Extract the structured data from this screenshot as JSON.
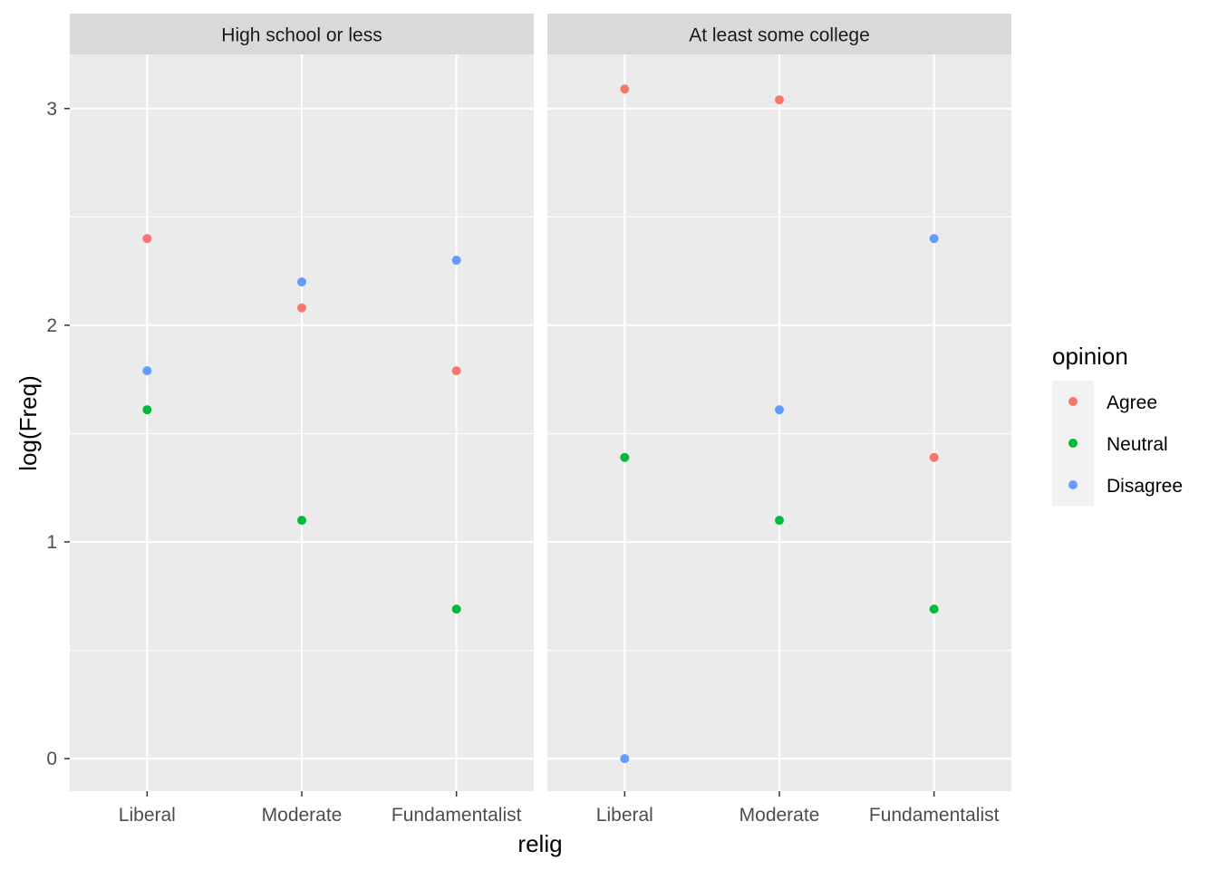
{
  "chart_data": {
    "type": "scatter",
    "xlabel": "relig",
    "ylabel": "log(Freq)",
    "categories": [
      "Liberal",
      "Moderate",
      "Fundamentalist"
    ],
    "yticks": [
      "0",
      "1",
      "2",
      "3"
    ],
    "ylim": [
      -0.15,
      3.25
    ],
    "grid": true,
    "facets": [
      {
        "title": "High school or less"
      },
      {
        "title": "At least some college"
      }
    ],
    "legend": {
      "title": "opinion",
      "placement": "right",
      "entries": [
        {
          "name": "Agree",
          "color": "#F8766D"
        },
        {
          "name": "Neutral",
          "color": "#00BA38"
        },
        {
          "name": "Disagree",
          "color": "#619CFF"
        }
      ]
    },
    "series": [
      {
        "name": "Agree",
        "color": "#F8766D",
        "facet_values": [
          [
            2.4,
            2.08,
            1.79
          ],
          [
            3.09,
            3.04,
            1.39
          ]
        ]
      },
      {
        "name": "Neutral",
        "color": "#00BA38",
        "facet_values": [
          [
            1.61,
            1.1,
            0.69
          ],
          [
            1.39,
            1.1,
            0.69
          ]
        ]
      },
      {
        "name": "Disagree",
        "color": "#619CFF",
        "facet_values": [
          [
            1.79,
            2.2,
            2.3
          ],
          [
            0.0,
            1.61,
            2.4
          ]
        ]
      }
    ]
  }
}
